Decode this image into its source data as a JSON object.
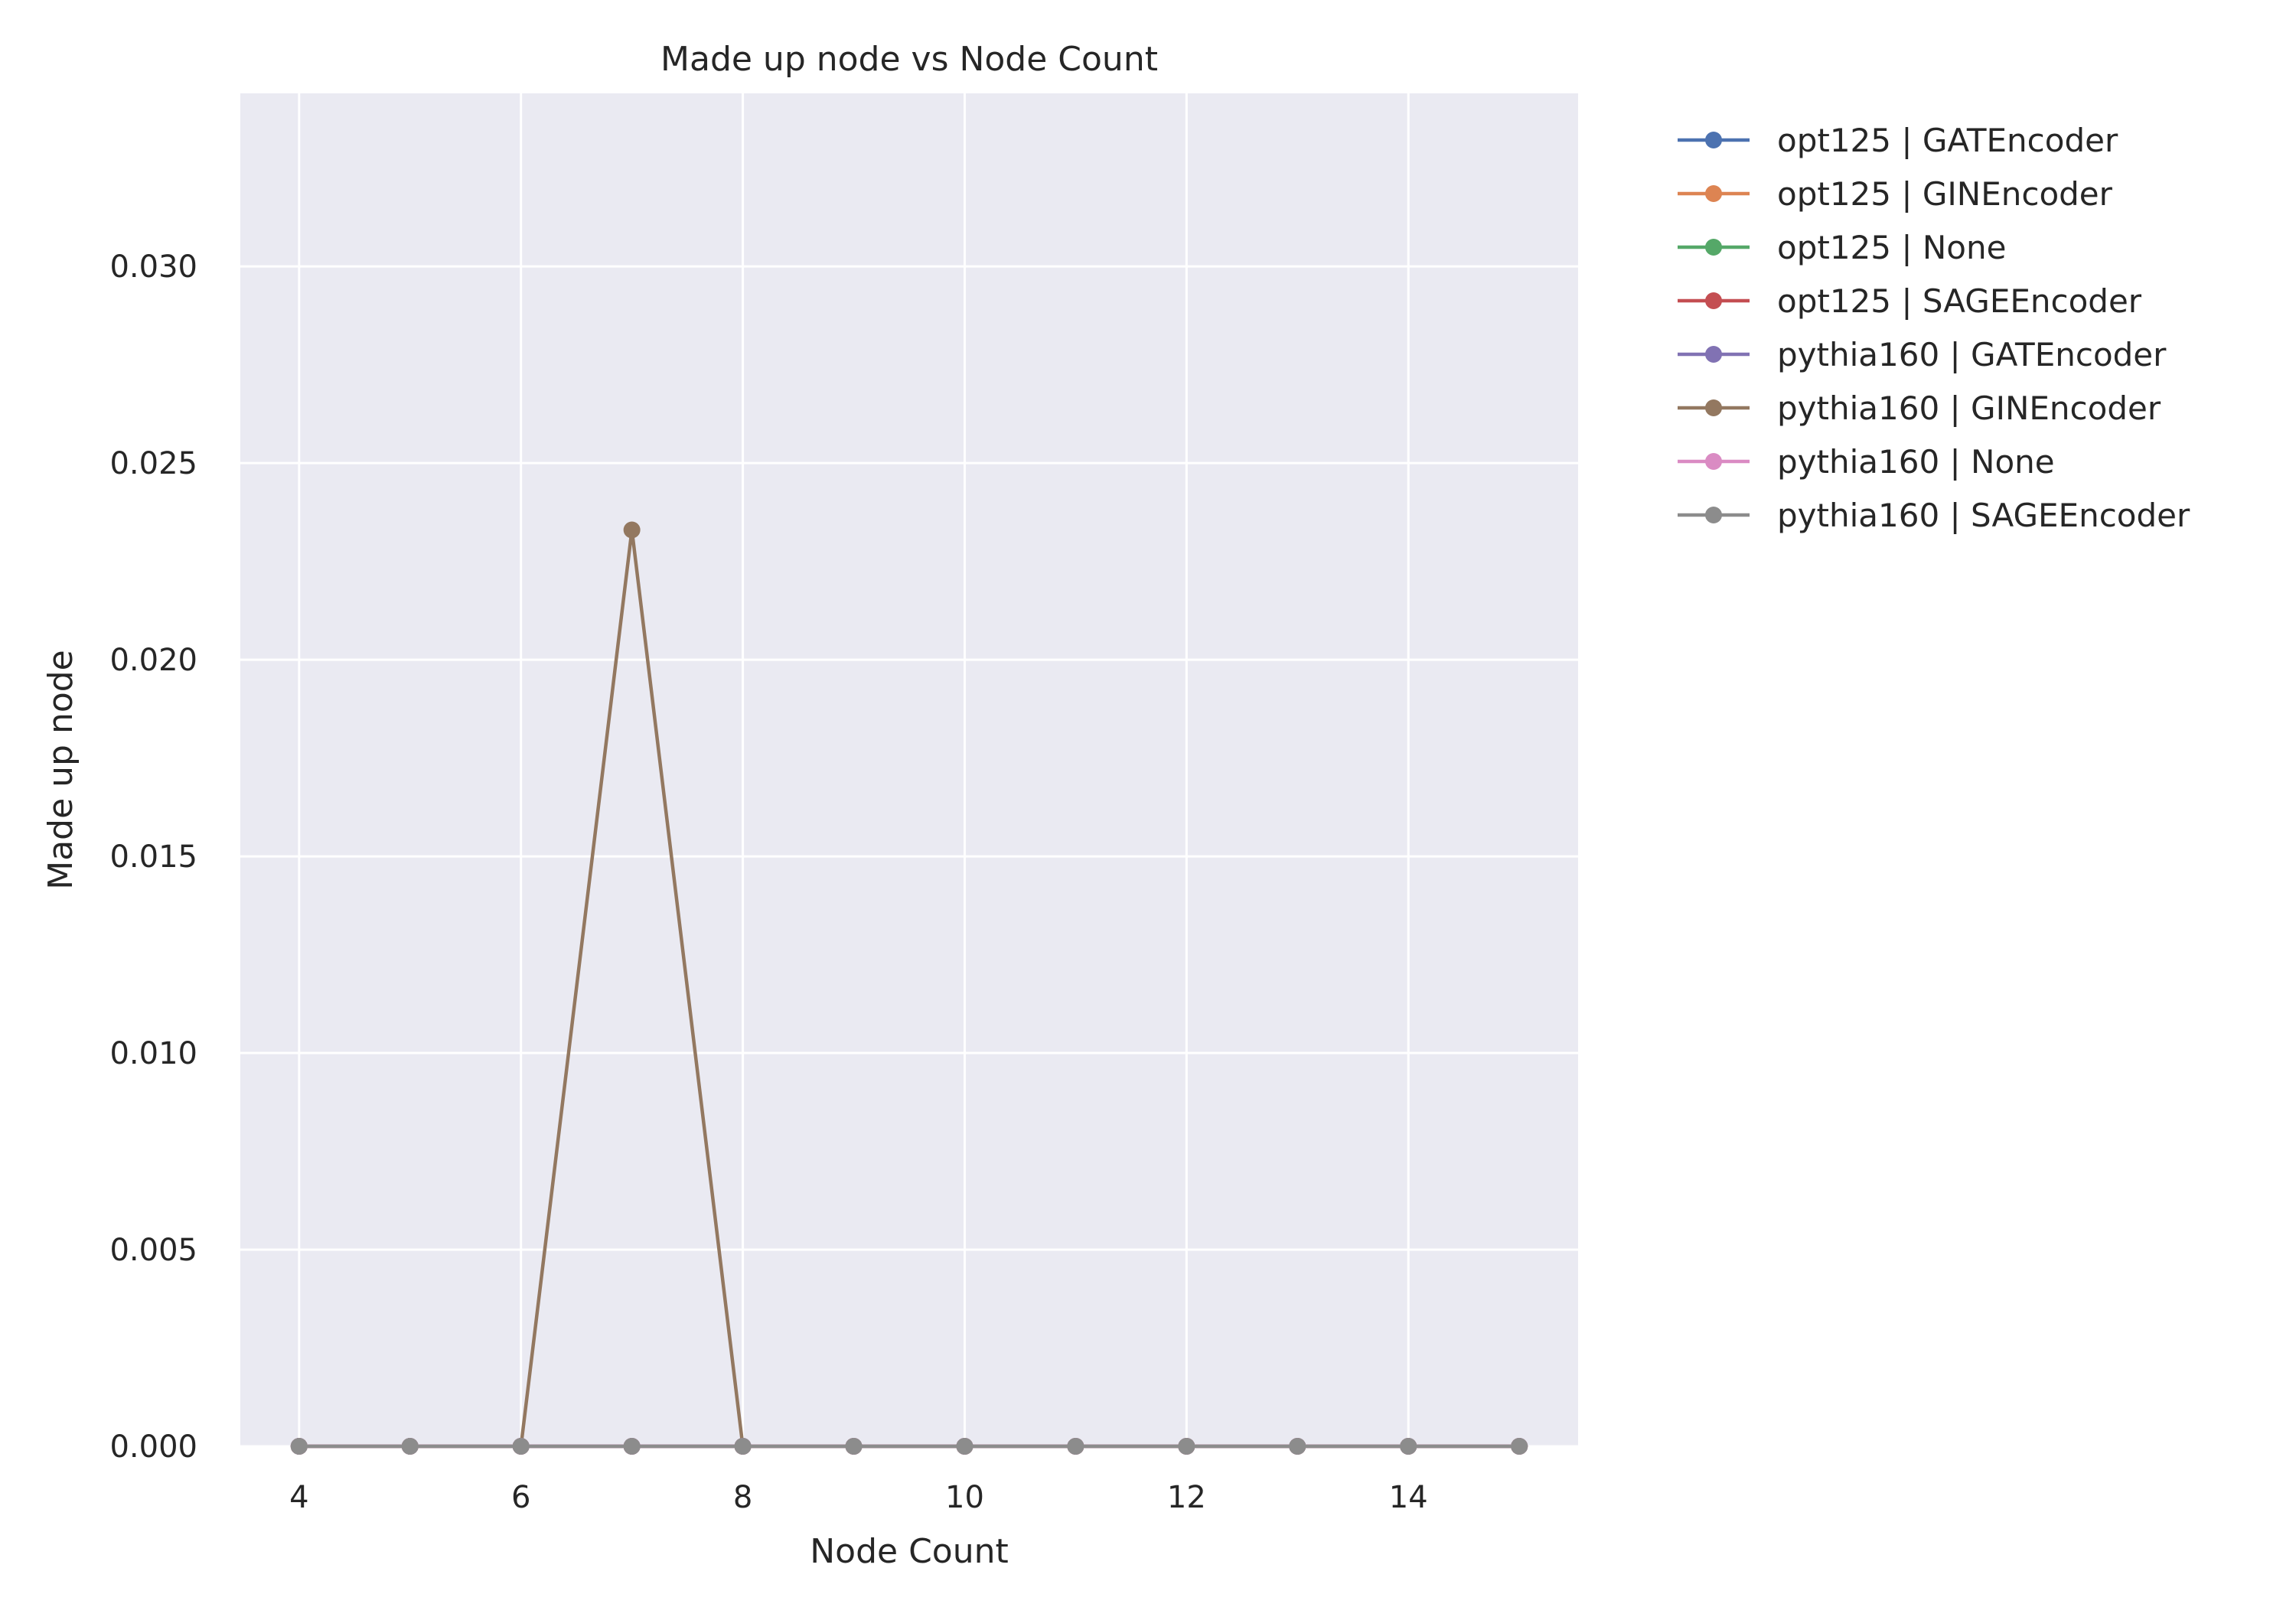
{
  "chart_data": {
    "type": "line",
    "title": "Made up node vs Node Count",
    "xlabel": "Node Count",
    "ylabel": "Made up node",
    "x": [
      4,
      5,
      6,
      7,
      8,
      9,
      10,
      11,
      12,
      13,
      14,
      15
    ],
    "xlim": [
      3.47,
      15.53
    ],
    "ylim": [
      0,
      0.0344
    ],
    "xticks": [
      4,
      6,
      8,
      10,
      12,
      14
    ],
    "yticks": [
      0,
      0.005,
      0.01,
      0.015,
      0.02,
      0.025,
      0.03
    ],
    "ytick_labels": [
      "0.000",
      "0.005",
      "0.010",
      "0.015",
      "0.020",
      "0.025",
      "0.030"
    ],
    "grid": true,
    "legend_position": "outside-right",
    "series": [
      {
        "name": "opt125 | GATEncoder",
        "color": "#4c72b0",
        "values": [
          0,
          0,
          0,
          0,
          0,
          0,
          0,
          0,
          0,
          0,
          0,
          0
        ]
      },
      {
        "name": "opt125 | GINEncoder",
        "color": "#dd8452",
        "values": [
          0,
          0,
          0,
          0,
          0,
          0,
          0,
          0,
          0,
          0,
          0,
          0
        ]
      },
      {
        "name": "opt125 | None",
        "color": "#55a868",
        "values": [
          0,
          0,
          0,
          0,
          0,
          0,
          0,
          0,
          0,
          0,
          0,
          0
        ]
      },
      {
        "name": "opt125 | SAGEEncoder",
        "color": "#c44e52",
        "values": [
          0,
          0,
          0,
          0,
          0,
          0,
          0,
          0,
          0,
          0,
          0,
          0
        ]
      },
      {
        "name": "pythia160 | GATEncoder",
        "color": "#8172b3",
        "values": [
          0,
          0,
          0,
          0,
          0,
          0,
          0,
          0,
          0,
          0,
          0,
          0
        ]
      },
      {
        "name": "pythia160 | GINEncoder",
        "color": "#937860",
        "values": [
          0,
          0,
          0,
          0.0233,
          0,
          0,
          0,
          0,
          0,
          0,
          0,
          0
        ]
      },
      {
        "name": "pythia160 | None",
        "color": "#da8bc3",
        "values": [
          0,
          0,
          0,
          0,
          0,
          0,
          0,
          0,
          0,
          0,
          0,
          0
        ]
      },
      {
        "name": "pythia160 | SAGEEncoder",
        "color": "#8c8c8c",
        "values": [
          0,
          0,
          0,
          0,
          0,
          0,
          0,
          0,
          0,
          0,
          0,
          0
        ]
      }
    ]
  },
  "colors": {
    "plot_background": "#eaeaf2",
    "grid": "#ffffff",
    "text": "#262626"
  }
}
